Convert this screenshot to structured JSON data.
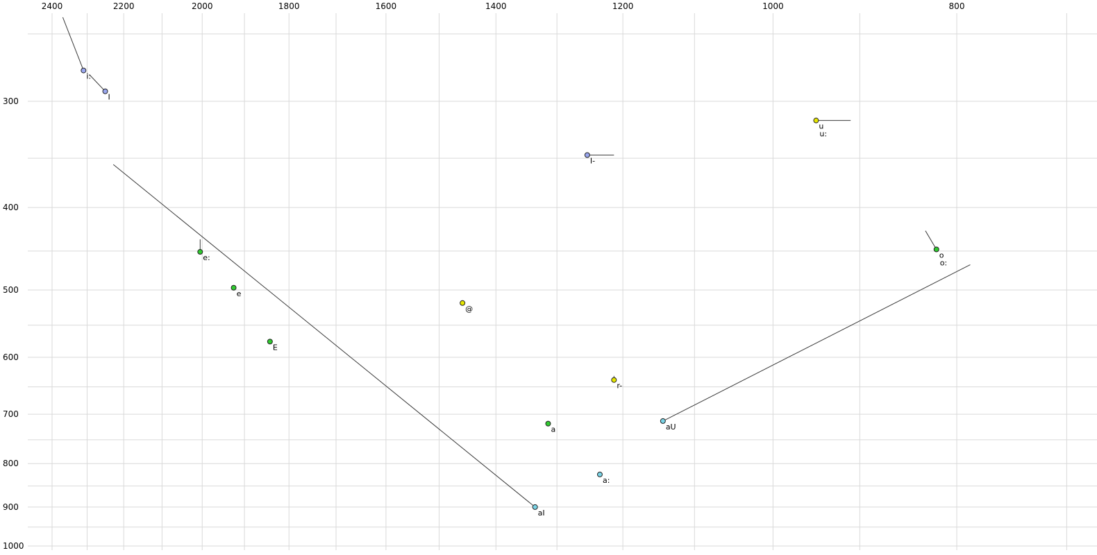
{
  "chart_data": {
    "type": "scatter",
    "title": "",
    "description": "Vowel formant plot (F2 horizontal, decreasing rightwards; F1 vertical, increasing downwards; both log-scaled), SAMPA vowel labels with diphthong trajectory lines",
    "x_axis": {
      "tick_labels": [
        "2400",
        "2200",
        "2000",
        "1800",
        "1600",
        "1400",
        "1200",
        "1000",
        "800"
      ],
      "tick_values": [
        2400,
        2200,
        2000,
        1800,
        1600,
        1400,
        1200,
        1000,
        800
      ],
      "scale": "log",
      "direction": "decreasing-right",
      "grid_step": 100,
      "grid_min": 700,
      "grid_max": 2400
    },
    "y_axis": {
      "tick_labels": [
        "300",
        "400",
        "500",
        "600",
        "700",
        "800",
        "900",
        "1000"
      ],
      "tick_values": [
        300,
        400,
        500,
        600,
        700,
        800,
        900,
        1000
      ],
      "scale": "log",
      "direction": "increasing-down",
      "grid_step": 50,
      "grid_min": 250,
      "grid_max": 1000
    },
    "points": [
      {
        "label": "i:",
        "f2": 2310,
        "f1": 276,
        "color_key": "blue"
      },
      {
        "label": "I",
        "f2": 2250,
        "f1": 292,
        "color_key": "blue"
      },
      {
        "label": "u",
        "label2": "u:",
        "f2": 949,
        "f1": 316,
        "color_key": "yellow"
      },
      {
        "label": "I-",
        "f2": 1253,
        "f1": 347,
        "color_key": "blue"
      },
      {
        "label": "o",
        "label2": "o:",
        "f2": 820,
        "f1": 448,
        "color_key": "green"
      },
      {
        "label": "e:",
        "f2": 2005,
        "f1": 451,
        "color_key": "green"
      },
      {
        "label": "e",
        "f2": 1925,
        "f1": 497,
        "color_key": "green"
      },
      {
        "label": "@",
        "f2": 1458,
        "f1": 518,
        "color_key": "yellow"
      },
      {
        "label": "E",
        "f2": 1842,
        "f1": 575,
        "color_key": "green"
      },
      {
        "label": "r-",
        "f2": 1213,
        "f1": 638,
        "color_key": "yellow"
      },
      {
        "label": "a",
        "f2": 1314,
        "f1": 718,
        "color_key": "green"
      },
      {
        "label": "aU",
        "f2": 1143,
        "f1": 713,
        "color_key": "cyan"
      },
      {
        "label": "a:",
        "f2": 1234,
        "f1": 824,
        "color_key": "cyan"
      },
      {
        "label": "aI",
        "f2": 1335,
        "f1": 900,
        "color_key": "cyan"
      }
    ],
    "trajectories": [
      {
        "for": "i:",
        "from": [
          2369,
          239
        ],
        "to": [
          2310,
          276
        ]
      },
      {
        "for": "I",
        "from": [
          2294,
          279
        ],
        "to": [
          2250,
          292
        ]
      },
      {
        "for": "u:",
        "from": [
          949,
          316
        ],
        "to": [
          910,
          316
        ]
      },
      {
        "for": "I-",
        "from": [
          1253,
          347
        ],
        "to": [
          1213,
          347
        ]
      },
      {
        "for": "e:",
        "from": [
          2005,
          436
        ],
        "to": [
          2005,
          451
        ]
      },
      {
        "for": "o:",
        "from": [
          831,
          426
        ],
        "to": [
          820,
          448
        ]
      },
      {
        "for": "r-",
        "from": [
          1213,
          631
        ],
        "to": [
          1213,
          638
        ]
      },
      {
        "for": "aI",
        "from": [
          2228,
          356
        ],
        "to": [
          1335,
          900
        ]
      },
      {
        "for": "aU",
        "from": [
          1143,
          713
        ],
        "to": [
          787,
          467
        ]
      }
    ],
    "colors": {
      "blue": "#9aa7ef",
      "green": "#2fca2f",
      "yellow": "#e6e600",
      "cyan": "#7ad4e6",
      "grid": "#d9d9d9",
      "trajectory": "#3a3a3a",
      "point_stroke": "#222222",
      "text": "#000000"
    }
  }
}
